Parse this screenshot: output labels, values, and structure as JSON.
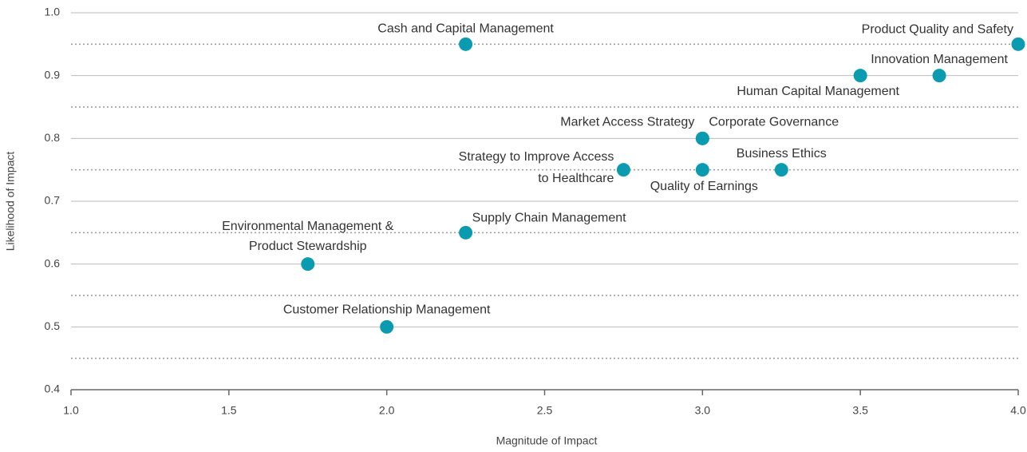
{
  "chart_data": {
    "type": "scatter",
    "xlabel": "Magnitude of Impact",
    "ylabel": "Likelihood of Impact",
    "color": "#0b9bb0",
    "grid": true,
    "xlim": [
      1,
      4
    ],
    "ylim": [
      0.4,
      1
    ],
    "xticks": [
      {
        "value": 1,
        "label": "1.0"
      },
      1.5,
      {
        "value": 2,
        "label": "2.0"
      },
      2.5,
      {
        "value": 3,
        "label": "3.0"
      },
      3.5,
      {
        "value": 4,
        "label": "4.0"
      }
    ],
    "yticks": [
      0.4,
      0.5,
      0.6,
      0.7,
      0.8,
      0.9,
      {
        "value": 1,
        "label": "1.0"
      }
    ],
    "minor_yticks": [
      0.45,
      0.55,
      0.65,
      0.75,
      0.85,
      0.95
    ],
    "labels": [
      [
        "Cash and Capital Management"
      ],
      [
        "Product Quality and Safety"
      ],
      [
        "Innovation Management"
      ],
      [
        "Human Capital Management"
      ],
      [
        "Market Access Strategy"
      ],
      [
        "Corporate Governance"
      ],
      [
        "Strategy to Improve Access",
        "to Healthcare"
      ],
      [
        "Quality of Earnings"
      ],
      [
        "Business Ethics"
      ],
      [
        "Supply Chain Management"
      ],
      [
        "Environmental Management &",
        "Product Stewardship"
      ],
      [
        "Customer Relationship Management"
      ]
    ],
    "x": [
      2.25,
      4.0,
      3.75,
      3.5,
      3.0,
      3.0,
      2.75,
      3.0,
      3.25,
      2.25,
      1.75,
      2.0
    ],
    "values": [
      0.95,
      0.95,
      0.9,
      0.9,
      0.8,
      0.8,
      0.75,
      0.75,
      0.75,
      0.65,
      0.6,
      0.5
    ]
  }
}
